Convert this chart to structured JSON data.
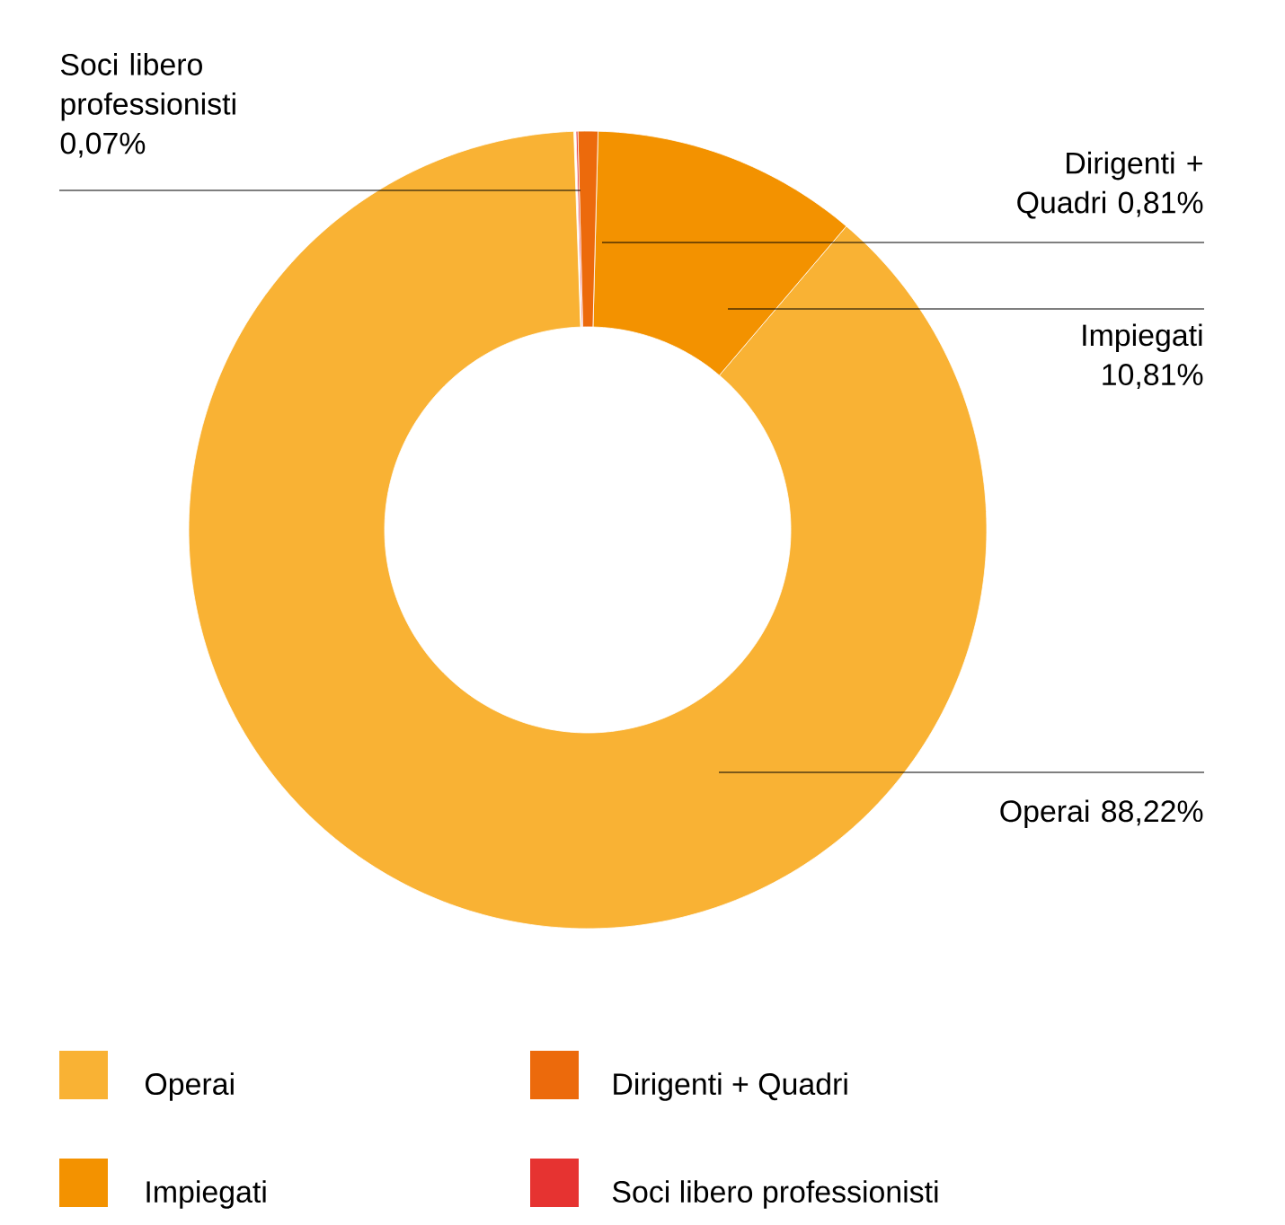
{
  "chart_data": {
    "type": "donut",
    "categories": [
      "Operai",
      "Impiegati",
      "Dirigenti + Quadri",
      "Soci libero professionisti"
    ],
    "values": [
      88.22,
      10.81,
      0.81,
      0.07
    ],
    "value_labels": [
      "88,22%",
      "10,81%",
      "0,81%",
      "0,07%"
    ],
    "colors": [
      "#f9b234",
      "#f39200",
      "#ec6a0c",
      "#e63331"
    ],
    "legend": "bottom"
  }
}
